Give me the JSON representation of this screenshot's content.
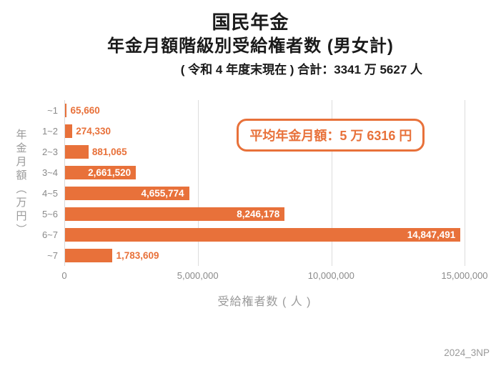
{
  "title": {
    "line1": "国民年金",
    "line2": "年金月額階級別受給権者数 (男女計)",
    "subtitle": "( 令和 4 年度末現在 ) 合計：3341 万 5627 人"
  },
  "annotation": "平均年金月額：5 万 6316 円",
  "footer": "2024_3NP",
  "colors": {
    "bar": "#e8713a",
    "inside_label": "#ffffff",
    "outside_label": "#e8713a",
    "gridline": "#dcdcdc",
    "axis_text": "#8a8a8a"
  },
  "chart_data": {
    "type": "bar",
    "orientation": "horizontal",
    "title": "国民年金 年金月額階級別受給権者数 (男女計)",
    "categories": [
      "~1",
      "1~2",
      "2~3",
      "3~4",
      "4~5",
      "5~6",
      "6~7",
      "~7"
    ],
    "values": [
      65660,
      274330,
      881065,
      2661520,
      4655774,
      8246178,
      14847491,
      1783609
    ],
    "value_labels": [
      "65,660",
      "274,330",
      "881,065",
      "2,661,520",
      "4,655,774",
      "8,246,178",
      "14,847,491",
      "1,783,609"
    ],
    "xlabel": "受給権者数 ( 人 )",
    "ylabel": "年金月額（万円）",
    "xlim": [
      0,
      15000000
    ],
    "xticks": [
      0,
      5000000,
      10000000,
      15000000
    ],
    "xtick_labels": [
      "0",
      "5,000,000",
      "10,000,000",
      "15,000,000"
    ],
    "grid": true,
    "legend": false,
    "inside_label_threshold": 2000000
  }
}
